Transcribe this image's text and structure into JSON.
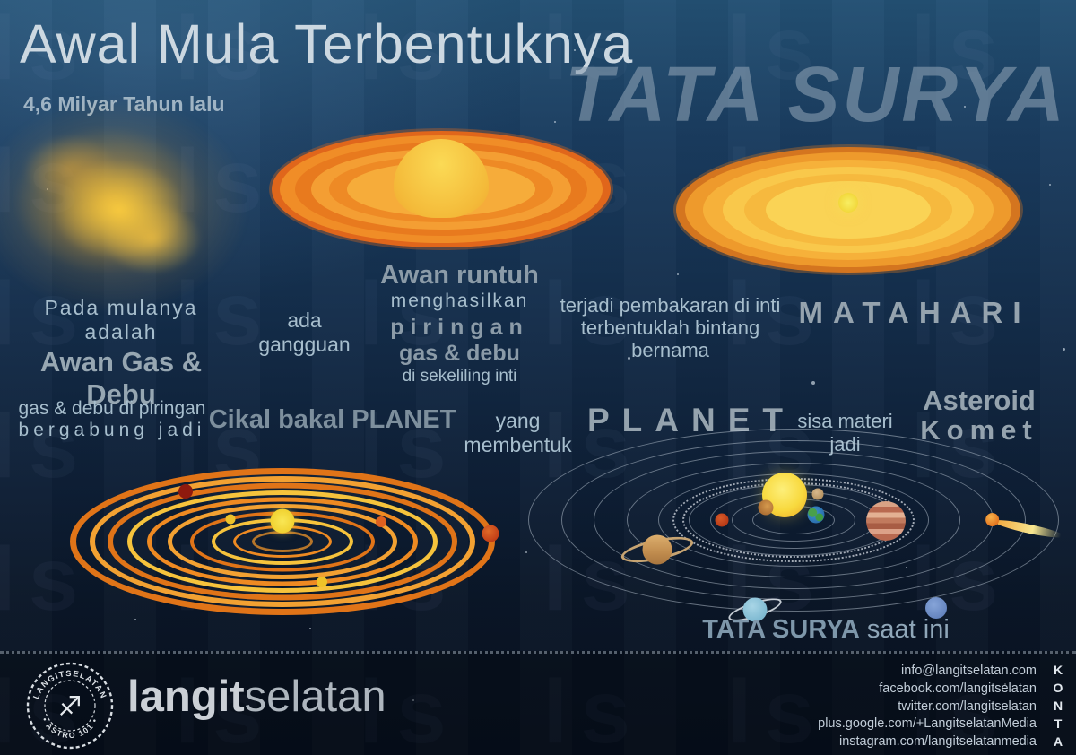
{
  "header": {
    "title": "Awal Mula Terbentuknya",
    "subtitle": "4,6 Milyar Tahun lalu",
    "big_title": "TATA SURYA"
  },
  "labels": {
    "stage1_light": "Pada mulanya adalah",
    "stage1_bold": "Awan Gas & Debu",
    "stage2": "ada gangguan",
    "stage3_bold1": "Awan runtuh",
    "stage3_light1": "menghasilkan",
    "stage3_bold2": "piringan",
    "stage3_bold3": "gas & debu",
    "stage3_light2": "di sekeliling inti",
    "stage4_light1": "terjadi pembakaran di inti",
    "stage4_light2": "terbentuklah bintang bernama",
    "stage4_result": "MATAHARI",
    "stage5_light1": "gas & debu di piringan",
    "stage5_light2": "bergabung jadi",
    "stage5_result": "Cikal bakal PLANET",
    "stage6_light": "yang membentuk",
    "stage6_result": "PLANET",
    "stage7_light": "sisa materi jadi",
    "stage7_result1": "Asteroid",
    "stage7_result2": "Komet",
    "caption_bold": "TATA SURYA",
    "caption_light": "saat ini"
  },
  "footer": {
    "badge_top": "LANGITSELATAN",
    "badge_bottom": "• ASTRO 101 •",
    "badge_icon": "♐",
    "brand_bold": "langit",
    "brand_light": "selatan",
    "kontak_label": "KONTAK",
    "contacts": [
      "info@langitselatan.com",
      "facebook.com/langitselatan",
      "twitter.com/langitselatan",
      "plus.google.com/+LangitselatanMedia",
      "instagram.com/langitselatanmedia"
    ]
  },
  "colors": {
    "background_top": "#235073",
    "background_bottom": "#081020",
    "disk_orange": "#ef8a24",
    "disk_edge_orange": "#e0661b",
    "sun_yellow": "#f6d73c",
    "title_gray": "#ccd8e1",
    "big_title_gray": "#64788c",
    "text_light_blue": "#a7becd",
    "text_bold_gray": "#8b9ba8"
  }
}
